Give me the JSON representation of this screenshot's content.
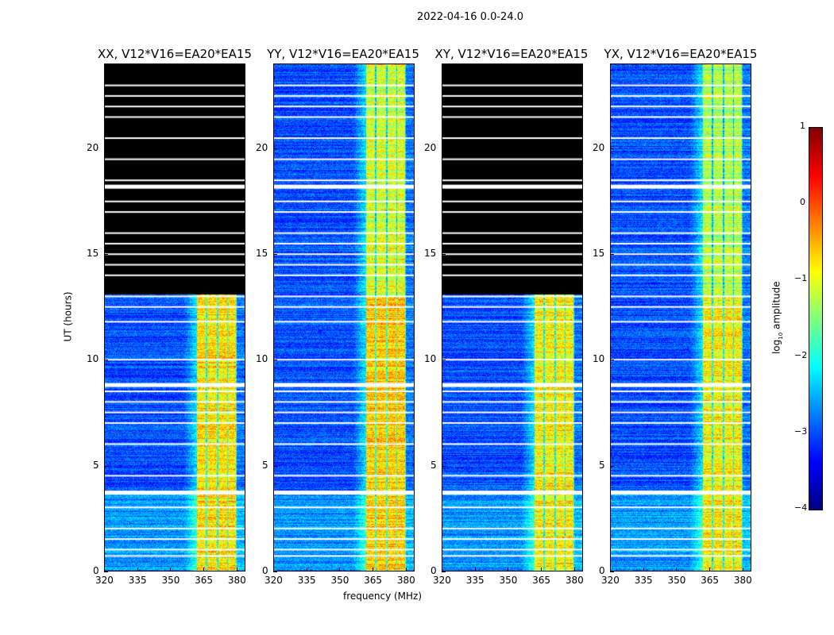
{
  "chart_data": {
    "type": "heatmap",
    "suptitle": "2022-04-16 0.0-24.0",
    "xlabel": "frequency (MHz)",
    "ylabel": "UT (hours)",
    "xlim": [
      320,
      384
    ],
    "ylim": [
      0,
      24
    ],
    "xticks": [
      "320",
      "335",
      "350",
      "365",
      "380"
    ],
    "xtick_values": [
      320,
      335,
      350,
      365,
      380
    ],
    "yticks": [
      "0",
      "5",
      "10",
      "15",
      "20"
    ],
    "ytick_values": [
      0,
      5,
      10,
      15,
      20
    ],
    "colormap": "jet",
    "colorbar": {
      "label": "log10 amplitude",
      "label_base": "log",
      "label_sub": "10",
      "label_rest": " amplitude",
      "range": [
        -4,
        1
      ],
      "ticks": [
        "1",
        "0",
        "−1",
        "−2",
        "−3",
        "−4"
      ],
      "tick_values": [
        1,
        0,
        -1,
        -2,
        -3,
        -4
      ]
    },
    "panels": [
      {
        "title": "XX, V12*V16=EA20*EA15",
        "zero_data_above_hours": 13.1,
        "band_peak": -0.4
      },
      {
        "title": "YY, V12*V16=EA20*EA15",
        "zero_data_above_hours": null,
        "band_peak": -0.3
      },
      {
        "title": "XY, V12*V16=EA20*EA15",
        "zero_data_above_hours": 13.1,
        "band_peak": -0.5
      },
      {
        "title": "YX, V12*V16=EA20*EA15",
        "zero_data_above_hours": null,
        "band_peak": -0.5
      }
    ],
    "signal_band_mhz": [
      362,
      380
    ],
    "channel_gaps_mhz": [
      366.5,
      371.5,
      376,
      380
    ],
    "background_level": -3.0,
    "flagged_hours": [
      0.7,
      1.0,
      1.5,
      2.0,
      3.0,
      3.7,
      4.5,
      6.0,
      7.0,
      7.5,
      8.0,
      8.5,
      8.8,
      10.0,
      11.8,
      12.5,
      13.0,
      14.0,
      14.5,
      15.0,
      15.5,
      16.0,
      17.0,
      17.5,
      18.2,
      18.5,
      19.5,
      20.5,
      21.5,
      22.0,
      22.5,
      23.0
    ],
    "wide_flagged_hours": [
      3.7,
      8.8,
      18.2
    ]
  }
}
